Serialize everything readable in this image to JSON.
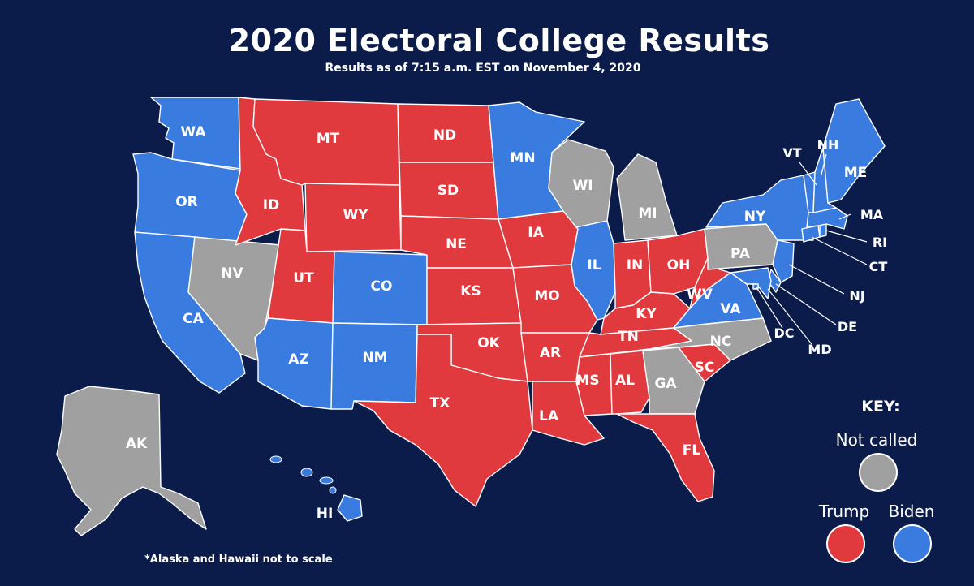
{
  "title": "2020 Electoral College Results",
  "subtitle": "Results as of 7:15 a.m. EST on November 4, 2020",
  "colors": {
    "background": "#0c1c4a",
    "trump": "#e03a3e",
    "biden": "#3a7be0",
    "not_called": "#a0a0a0"
  },
  "states": [
    {
      "abbr": "WA",
      "result": "biden"
    },
    {
      "abbr": "OR",
      "result": "biden"
    },
    {
      "abbr": "CA",
      "result": "biden"
    },
    {
      "abbr": "NV",
      "result": "not_called"
    },
    {
      "abbr": "ID",
      "result": "trump"
    },
    {
      "abbr": "MT",
      "result": "trump"
    },
    {
      "abbr": "WY",
      "result": "trump"
    },
    {
      "abbr": "UT",
      "result": "trump"
    },
    {
      "abbr": "AZ",
      "result": "biden"
    },
    {
      "abbr": "CO",
      "result": "biden"
    },
    {
      "abbr": "NM",
      "result": "biden"
    },
    {
      "abbr": "ND",
      "result": "trump"
    },
    {
      "abbr": "SD",
      "result": "trump"
    },
    {
      "abbr": "NE",
      "result": "trump"
    },
    {
      "abbr": "KS",
      "result": "trump"
    },
    {
      "abbr": "OK",
      "result": "trump"
    },
    {
      "abbr": "TX",
      "result": "trump"
    },
    {
      "abbr": "MN",
      "result": "biden"
    },
    {
      "abbr": "IA",
      "result": "trump"
    },
    {
      "abbr": "MO",
      "result": "trump"
    },
    {
      "abbr": "AR",
      "result": "trump"
    },
    {
      "abbr": "LA",
      "result": "trump"
    },
    {
      "abbr": "WI",
      "result": "not_called"
    },
    {
      "abbr": "IL",
      "result": "biden"
    },
    {
      "abbr": "MI",
      "result": "not_called"
    },
    {
      "abbr": "IN",
      "result": "trump"
    },
    {
      "abbr": "OH",
      "result": "trump"
    },
    {
      "abbr": "KY",
      "result": "trump"
    },
    {
      "abbr": "TN",
      "result": "trump"
    },
    {
      "abbr": "MS",
      "result": "trump"
    },
    {
      "abbr": "AL",
      "result": "trump"
    },
    {
      "abbr": "GA",
      "result": "not_called"
    },
    {
      "abbr": "FL",
      "result": "trump"
    },
    {
      "abbr": "SC",
      "result": "trump"
    },
    {
      "abbr": "NC",
      "result": "not_called"
    },
    {
      "abbr": "VA",
      "result": "biden"
    },
    {
      "abbr": "WV",
      "result": "trump"
    },
    {
      "abbr": "PA",
      "result": "not_called"
    },
    {
      "abbr": "NY",
      "result": "biden"
    },
    {
      "abbr": "VT",
      "result": "biden"
    },
    {
      "abbr": "NH",
      "result": "biden"
    },
    {
      "abbr": "ME",
      "result": "biden"
    },
    {
      "abbr": "MA",
      "result": "biden"
    },
    {
      "abbr": "RI",
      "result": "biden"
    },
    {
      "abbr": "CT",
      "result": "biden"
    },
    {
      "abbr": "NJ",
      "result": "biden"
    },
    {
      "abbr": "DE",
      "result": "biden"
    },
    {
      "abbr": "MD",
      "result": "biden"
    },
    {
      "abbr": "DC",
      "result": "biden"
    },
    {
      "abbr": "AK",
      "result": "not_called"
    },
    {
      "abbr": "HI",
      "result": "biden"
    }
  ],
  "key": {
    "title": "KEY:",
    "not_called": "Not called",
    "trump": "Trump",
    "biden": "Biden"
  },
  "footnote": "*Alaska and Hawaii not to scale"
}
